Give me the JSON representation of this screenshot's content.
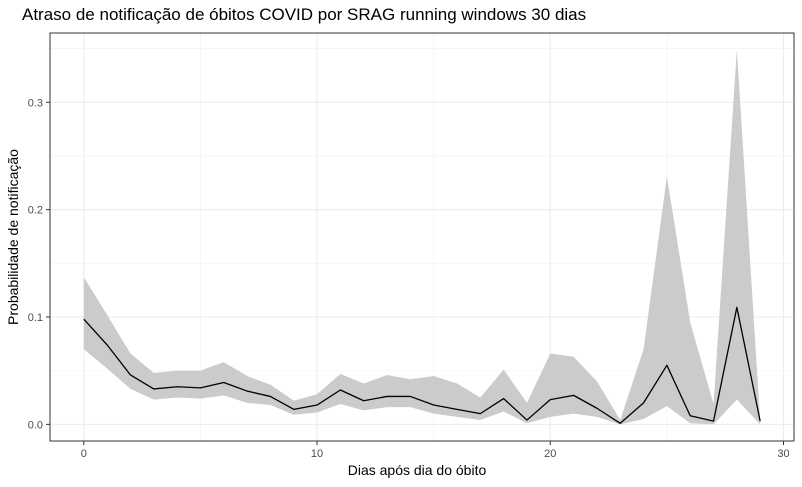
{
  "chart_data": {
    "type": "line",
    "title": "Atraso de notificação de óbitos COVID por SRAG running windows 30 dias",
    "xlabel": "Dias após dia do óbito",
    "ylabel": "Probabilidade de notificação",
    "xlim": [
      -1.45,
      30.45
    ],
    "ylim": [
      -0.0155,
      0.3645
    ],
    "x_ticks": [
      0,
      10,
      20,
      30
    ],
    "x_tick_labels": [
      "0",
      "10",
      "20",
      "30"
    ],
    "y_ticks": [
      0.0,
      0.1,
      0.2,
      0.3
    ],
    "y_tick_labels": [
      "0.0",
      "0.1",
      "0.2",
      "0.3"
    ],
    "grid": true,
    "legend": "none",
    "colors": {
      "line": "#000000",
      "ribbon": "#cbcbcb",
      "panel_border": "#333333",
      "grid_major": "#ebebeb",
      "grid_minor": "#f5f5f5"
    },
    "series": [
      {
        "x": [
          0,
          1,
          2,
          3,
          4,
          5,
          6,
          7,
          8,
          9,
          10,
          11,
          12,
          13,
          14,
          15,
          16,
          17,
          18,
          19,
          20,
          21,
          22,
          23,
          24,
          25,
          26,
          27,
          28,
          29
        ],
        "values": [
          0.098,
          0.074,
          0.046,
          0.033,
          0.035,
          0.034,
          0.039,
          0.031,
          0.026,
          0.014,
          0.018,
          0.032,
          0.022,
          0.026,
          0.026,
          0.018,
          0.014,
          0.01,
          0.024,
          0.004,
          0.023,
          0.027,
          0.015,
          0.001,
          0.02,
          0.055,
          0.008,
          0.003,
          0.109,
          0.003
        ],
        "lower": [
          0.07,
          0.052,
          0.033,
          0.023,
          0.025,
          0.024,
          0.027,
          0.02,
          0.018,
          0.009,
          0.011,
          0.019,
          0.013,
          0.016,
          0.016,
          0.01,
          0.007,
          0.004,
          0.012,
          0.001,
          0.007,
          0.01,
          0.007,
          0.0,
          0.005,
          0.017,
          0.001,
          0.0,
          0.023,
          0.0
        ],
        "upper": [
          0.137,
          0.102,
          0.066,
          0.048,
          0.05,
          0.05,
          0.058,
          0.045,
          0.037,
          0.022,
          0.028,
          0.047,
          0.038,
          0.046,
          0.042,
          0.045,
          0.038,
          0.025,
          0.051,
          0.02,
          0.066,
          0.063,
          0.04,
          0.004,
          0.07,
          0.231,
          0.095,
          0.019,
          0.349,
          0.003
        ]
      }
    ]
  }
}
